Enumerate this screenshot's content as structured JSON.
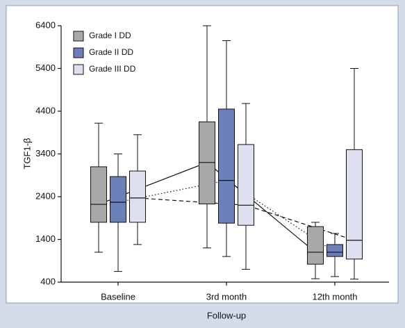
{
  "chart_data": {
    "type": "box",
    "ylabel": "TGF1-β",
    "xlabel": "Follow-up",
    "categories": [
      "Baseline",
      "3rd month",
      "12th month"
    ],
    "ylim": [
      400,
      6400
    ],
    "yticks": [
      400,
      1400,
      2400,
      3400,
      4400,
      5400,
      6400
    ],
    "legend": "upper left",
    "series": [
      {
        "name": "Grade I DD",
        "color": "#a8a8a8",
        "line_style": "solid",
        "boxes": [
          {
            "whislo": 1100,
            "q1": 1800,
            "med": 2220,
            "q3": 3100,
            "whishi": 4120
          },
          {
            "whislo": 1200,
            "q1": 2230,
            "med": 3200,
            "q3": 4150,
            "whishi": 6400
          },
          {
            "whislo": 480,
            "q1": 820,
            "med": 1100,
            "q3": 1700,
            "whishi": 1800
          }
        ]
      },
      {
        "name": "Grade II DD",
        "color": "#6b7fb8",
        "line_style": "dotted",
        "boxes": [
          {
            "whislo": 650,
            "q1": 1800,
            "med": 2270,
            "q3": 2870,
            "whishi": 3400
          },
          {
            "whislo": 1000,
            "q1": 1780,
            "med": 2780,
            "q3": 4450,
            "whishi": 6050
          },
          {
            "whislo": 530,
            "q1": 1000,
            "med": 1100,
            "q3": 1280,
            "whishi": 1540
          }
        ]
      },
      {
        "name": "Grade III DD",
        "color": "#dde0ef",
        "line_style": "dashed",
        "boxes": [
          {
            "whislo": 1280,
            "q1": 1800,
            "med": 2370,
            "q3": 3000,
            "whishi": 3850
          },
          {
            "whislo": 700,
            "q1": 1730,
            "med": 2200,
            "q3": 3620,
            "whishi": 4580
          },
          {
            "whislo": 470,
            "q1": 940,
            "med": 1380,
            "q3": 3500,
            "whishi": 5400
          }
        ]
      }
    ]
  }
}
